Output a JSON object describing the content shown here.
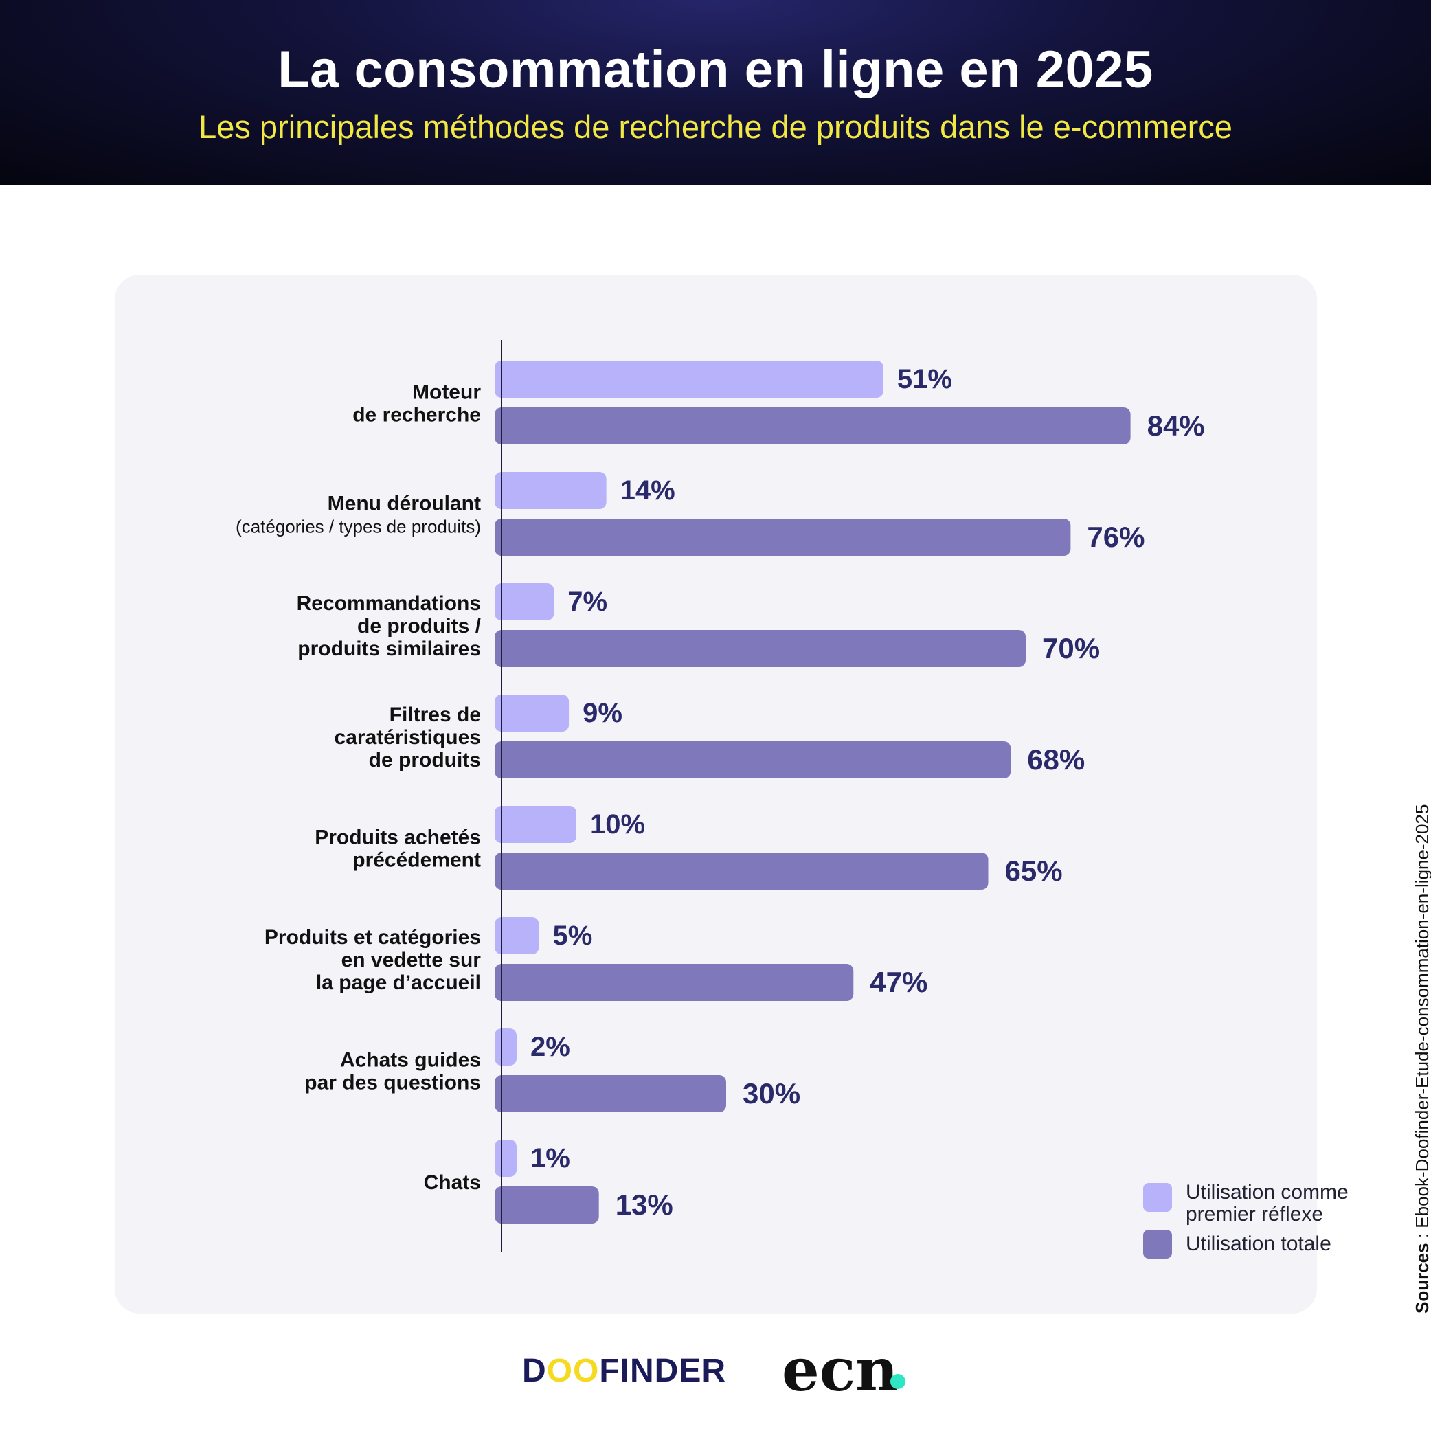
{
  "header": {
    "title": "La consommation en ligne en 2025",
    "subtitle": "Les principales méthodes de recherche de produits dans le e-commerce"
  },
  "colors": {
    "first_reflex": "#b8b2fb",
    "total": "#7f78bb",
    "value_label": "#2a2a6b",
    "axis": "#1d1d3a"
  },
  "chart_data": {
    "type": "bar",
    "orientation": "horizontal",
    "categories": [
      [
        "Moteur",
        "de recherche"
      ],
      [
        "Menu déroulant",
        "(catégories / types de produits)"
      ],
      [
        "Recommandations",
        "de produits /",
        "produits similaires"
      ],
      [
        "Filtres de",
        "caratéristiques",
        "de produits"
      ],
      [
        "Produits achetés",
        "précédement"
      ],
      [
        "Produits et catégories",
        "en vedette sur",
        "la page d’accueil"
      ],
      [
        "Achats guides",
        "par des questions"
      ],
      [
        "Chats"
      ]
    ],
    "series": [
      {
        "name": "Utilisation comme premier réflexe",
        "values": [
          51,
          14,
          7,
          9,
          10,
          5,
          2,
          1
        ]
      },
      {
        "name": "Utilisation totale",
        "values": [
          84,
          76,
          70,
          68,
          65,
          47,
          30,
          13
        ]
      }
    ],
    "value_labels": [
      [
        "51%",
        "14%",
        "7%",
        "9%",
        "10%",
        "5%",
        "2%",
        "1%"
      ],
      [
        "84%",
        "76%",
        "70%",
        "68%",
        "65%",
        "47%",
        "30%",
        "13%"
      ]
    ],
    "xlim": [
      0,
      100
    ],
    "grid": false,
    "legend_position": "bottom-right"
  },
  "legend": {
    "first_reflex_label": "Utilisation comme premier réflexe",
    "total_label": "Utilisation totale"
  },
  "source": {
    "label": "Sources",
    "text": " : Ebook-Doofinder-Etude-consommation-en-ligne-2025"
  },
  "logos": {
    "doofinder_d": "D",
    "doofinder_oo": "OO",
    "doofinder_rest": "FINDER",
    "ecn": "ecn"
  }
}
